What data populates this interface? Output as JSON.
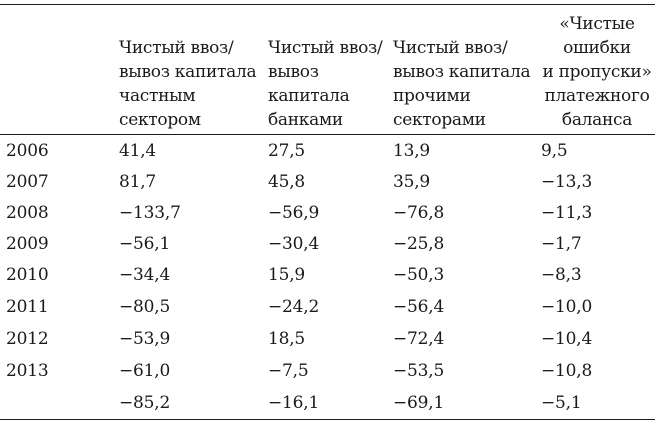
{
  "table": {
    "headers": [
      [
        "Чистый ввоз/",
        "вывоз капитала",
        "частным",
        "сектором"
      ],
      [
        "Чистый ввоз/",
        "вывоз",
        "капитала",
        "банками"
      ],
      [
        "Чистый ввоз/",
        "вывоз капитала",
        "прочими",
        "секторами"
      ],
      [
        "«Чистые",
        "ошибки",
        "и пропуски»",
        "платежного",
        "баланса"
      ]
    ],
    "rows": [
      {
        "year": "2006",
        "values": [
          "41,4",
          "27,5",
          "13,9",
          "9,5"
        ]
      },
      {
        "year": "2007",
        "values": [
          "81,7",
          "45,8",
          "35,9",
          "−13,3"
        ]
      },
      {
        "year": "2008",
        "values": [
          "−133,7",
          "−56,9",
          "−76,8",
          "−11,3"
        ]
      },
      {
        "year": "2009",
        "values": [
          "−56,1",
          "−30,4",
          "−25,8",
          "−1,7"
        ]
      },
      {
        "year": "2010",
        "values": [
          "−34,4",
          "15,9",
          "−50,3",
          "−8,3"
        ]
      },
      {
        "year": "2011",
        "values": [
          "−80,5",
          "−24,2",
          "−56,4",
          "−10,0"
        ]
      },
      {
        "year": "2012",
        "values": [
          "−53,9",
          "18,5",
          "−72,4",
          "−10,4"
        ]
      },
      {
        "year": "2013",
        "values": [
          "−61,0",
          "−7,5",
          "−53,5",
          "−10,8"
        ]
      },
      {
        "year": "",
        "values": [
          "−85,2",
          "−16,1",
          "−69,1",
          "−5,1"
        ]
      }
    ]
  }
}
